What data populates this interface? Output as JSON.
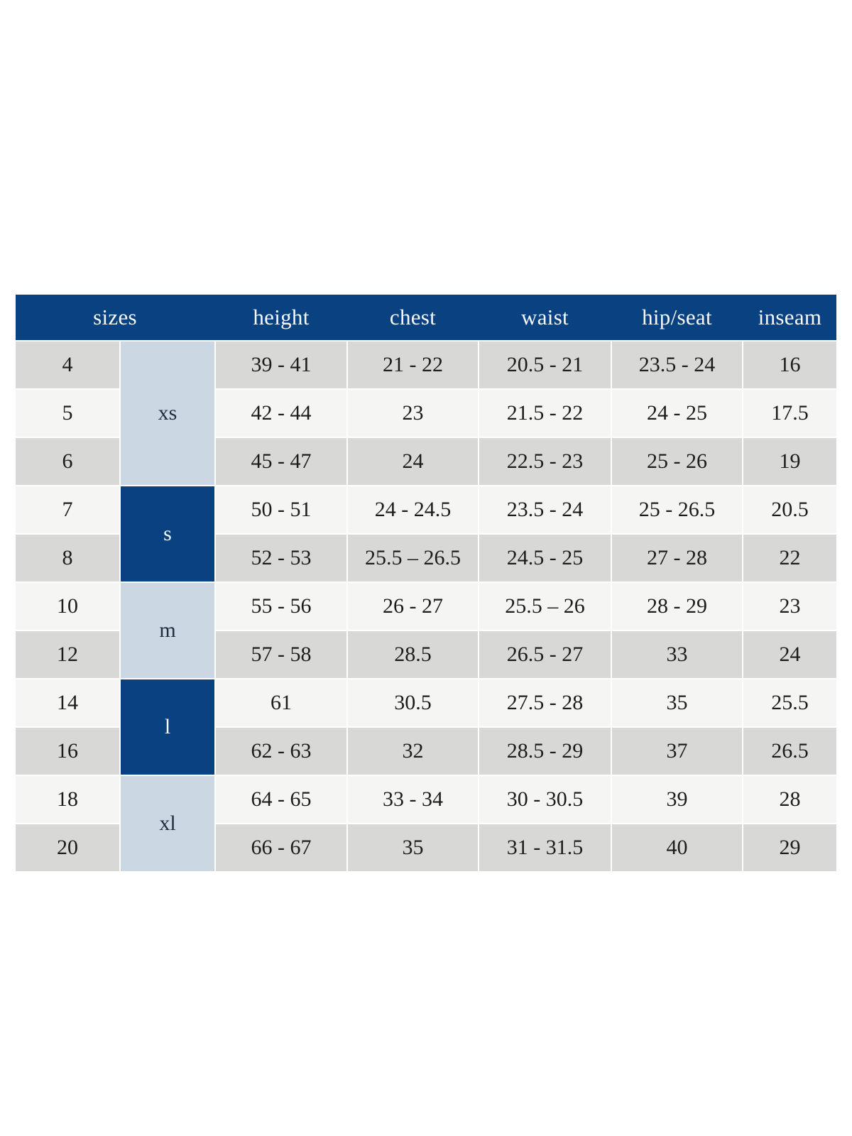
{
  "colors": {
    "header_navy": "#0a4180",
    "group_light_blue": "#ccd7e4",
    "group_dark_navy": "#0a4180",
    "row_gray": "#d8d8d7",
    "row_offwhite": "#f5f5f4",
    "header_text": "#f7f9fc",
    "body_text": "#1c1c1c",
    "page_background": "#ffffff"
  },
  "table": {
    "headers": [
      {
        "id": "sizes",
        "label": "sizes"
      },
      {
        "id": "height",
        "label": "height"
      },
      {
        "id": "chest",
        "label": "chest"
      },
      {
        "id": "waist",
        "label": "waist"
      },
      {
        "id": "hip_seat",
        "label": "hip/seat"
      },
      {
        "id": "inseam",
        "label": "inseam"
      }
    ],
    "groups": [
      {
        "label": "xs",
        "tone": "light",
        "rows": [
          {
            "size": "4",
            "height": "39 - 41",
            "chest": "21 - 22",
            "waist": "20.5 - 21",
            "hip_seat": "23.5 - 24",
            "inseam": "16"
          },
          {
            "size": "5",
            "height": "42 - 44",
            "chest": "23",
            "waist": "21.5 - 22",
            "hip_seat": "24 - 25",
            "inseam": "17.5"
          },
          {
            "size": "6",
            "height": "45 - 47",
            "chest": "24",
            "waist": "22.5 - 23",
            "hip_seat": "25 - 26",
            "inseam": "19"
          }
        ]
      },
      {
        "label": "s",
        "tone": "dark",
        "rows": [
          {
            "size": "7",
            "height": "50 - 51",
            "chest": "24 - 24.5",
            "waist": "23.5 - 24",
            "hip_seat": "25 - 26.5",
            "inseam": "20.5"
          },
          {
            "size": "8",
            "height": "52 - 53",
            "chest": "25.5 – 26.5",
            "waist": "24.5 - 25",
            "hip_seat": "27 - 28",
            "inseam": "22"
          }
        ]
      },
      {
        "label": "m",
        "tone": "light",
        "rows": [
          {
            "size": "10",
            "height": "55 - 56",
            "chest": "26 - 27",
            "waist": "25.5 – 26",
            "hip_seat": "28 - 29",
            "inseam": "23"
          },
          {
            "size": "12",
            "height": "57 - 58",
            "chest": "28.5",
            "waist": "26.5 - 27",
            "hip_seat": "33",
            "inseam": "24"
          }
        ]
      },
      {
        "label": "l",
        "tone": "dark",
        "rows": [
          {
            "size": "14",
            "height": "61",
            "chest": "30.5",
            "waist": "27.5 - 28",
            "hip_seat": "35",
            "inseam": "25.5"
          },
          {
            "size": "16",
            "height": "62 - 63",
            "chest": "32",
            "waist": "28.5 - 29",
            "hip_seat": "37",
            "inseam": "26.5"
          }
        ]
      },
      {
        "label": "xl",
        "tone": "light",
        "rows": [
          {
            "size": "18",
            "height": "64 - 65",
            "chest": "33 - 34",
            "waist": "30 - 30.5",
            "hip_seat": "39",
            "inseam": "28"
          },
          {
            "size": "20",
            "height": "66 - 67",
            "chest": "35",
            "waist": "31 - 31.5",
            "hip_seat": "40",
            "inseam": "29"
          }
        ]
      }
    ]
  }
}
